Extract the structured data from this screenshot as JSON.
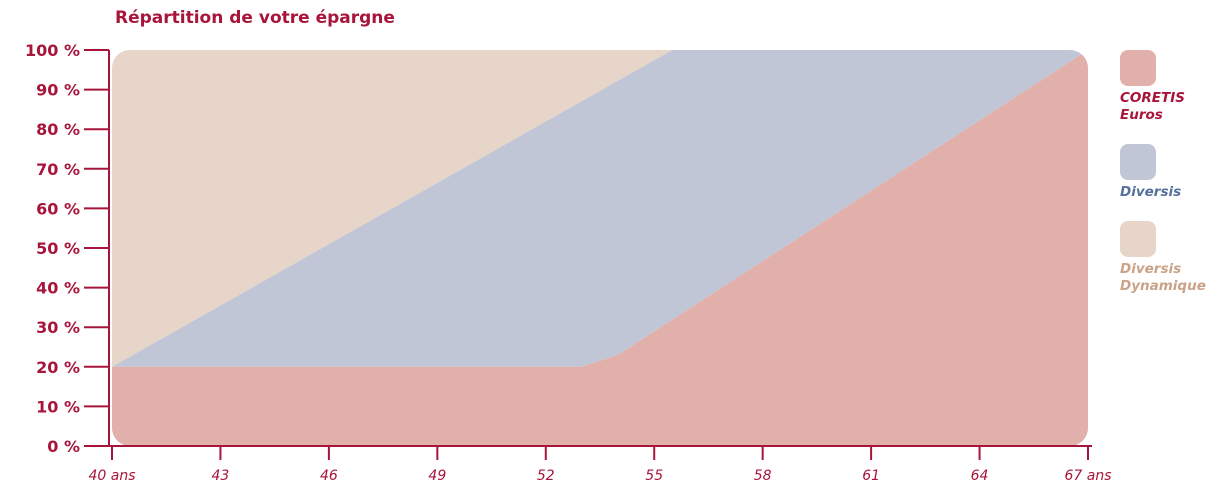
{
  "chart_data": {
    "type": "area",
    "title": "Répartition de votre épargne",
    "x": [
      40,
      43,
      46,
      49,
      52,
      55,
      58,
      61,
      64,
      67
    ],
    "x_tick_labels": [
      "40 ans",
      "43",
      "46",
      "49",
      "52",
      "55",
      "58",
      "61",
      "64",
      "67 ans"
    ],
    "y_tick_labels": [
      "0 %",
      "10 %",
      "20 %",
      "30 %",
      "40 %",
      "50 %",
      "60 %",
      "70 %",
      "80 %",
      "90 %",
      "100 %"
    ],
    "ylim": [
      0,
      100
    ],
    "xlim": [
      40,
      67
    ],
    "series": [
      {
        "name": "CORETIS Euros",
        "color": "#e2b0aa",
        "points": [
          [
            40,
            20
          ],
          [
            53,
            20
          ],
          [
            54,
            23
          ],
          [
            67,
            100
          ]
        ]
      },
      {
        "name": "Diversis",
        "color": "#c0c6d5",
        "points": [
          [
            40,
            20
          ],
          [
            55.5,
            100
          ],
          [
            67,
            100
          ]
        ]
      },
      {
        "name": "Diversis Dynamique",
        "color": "#e6d5c8",
        "points": [
          [
            40,
            100
          ],
          [
            55.5,
            100
          ]
        ]
      }
    ]
  },
  "legend": [
    {
      "lines": [
        "CORETIS",
        "Euros"
      ],
      "color": "#e2b0aa",
      "text_color": "#a8153a"
    },
    {
      "lines": [
        "Diversis"
      ],
      "color": "#c0c6d5",
      "text_color": "#54709a"
    },
    {
      "lines": [
        "Diversis",
        "Dynamique"
      ],
      "color": "#e6d5c8",
      "text_color": "#c9a287"
    }
  ],
  "colors": {
    "axis": "#a8153a",
    "tick_text": "#a8153a",
    "x_tick_text": "#a8153a"
  }
}
